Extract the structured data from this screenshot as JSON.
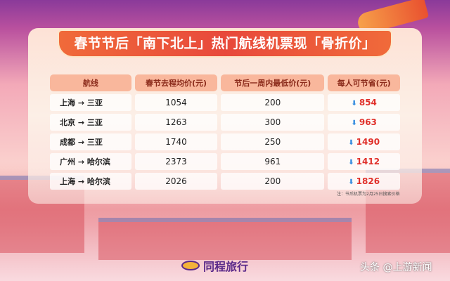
{
  "title": "春节节后「南下北上」热门航线机票现「骨折价」",
  "table": {
    "headers": [
      "航线",
      "春节去程均价(元)",
      "节后一周内最低价(元)",
      "每人可节省(元)"
    ],
    "rows": [
      {
        "route": "上海 → 三亚",
        "avg": "1054",
        "low": "200",
        "save": "854"
      },
      {
        "route": "北京 → 三亚",
        "avg": "1263",
        "low": "300",
        "save": "963"
      },
      {
        "route": "成都 → 三亚",
        "avg": "1740",
        "low": "250",
        "save": "1490"
      },
      {
        "route": "广州 → 哈尔滨",
        "avg": "2373",
        "low": "961",
        "save": "1412"
      },
      {
        "route": "上海 → 哈尔滨",
        "avg": "2026",
        "low": "200",
        "save": "1826"
      }
    ]
  },
  "note": "注：节后机票为2月25日搜索价格",
  "logo": "同程旅行",
  "watermark": "头条 @上游新闻",
  "colors": {
    "accent": "#e8493b",
    "save": "#e0302a",
    "down_arrow": "#3a8fe0"
  },
  "icons": {
    "savings_indicator": "down-arrow-icon"
  }
}
